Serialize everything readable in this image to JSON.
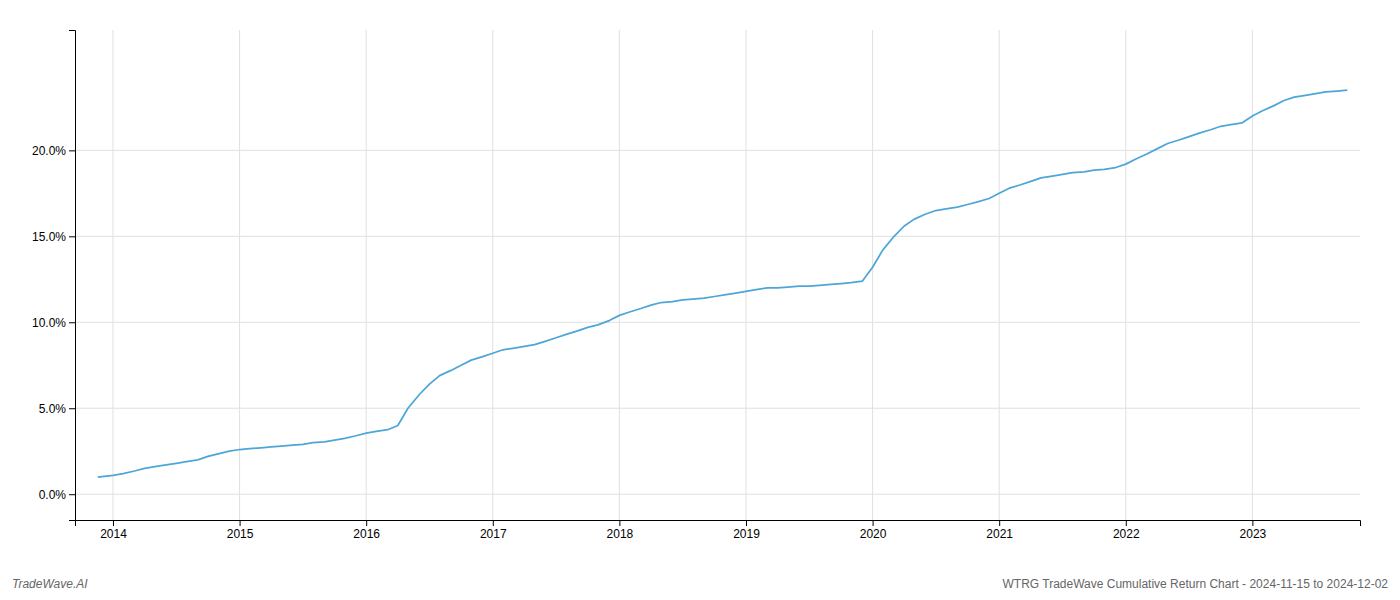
{
  "chart_data": {
    "type": "line",
    "title": "WTRG TradeWave Cumulative Return Chart - 2024-11-15 to 2024-12-02",
    "annotations": [
      "TradeWave.AI"
    ],
    "color": "#4da6d8",
    "grid": true,
    "x": [
      2013.88,
      2014.0,
      2014.08,
      2014.17,
      2014.25,
      2014.33,
      2014.42,
      2014.5,
      2014.58,
      2014.67,
      2014.75,
      2014.83,
      2014.92,
      2015.0,
      2015.08,
      2015.17,
      2015.25,
      2015.33,
      2015.42,
      2015.5,
      2015.58,
      2015.67,
      2015.75,
      2015.83,
      2015.92,
      2016.0,
      2016.08,
      2016.17,
      2016.25,
      2016.33,
      2016.42,
      2016.5,
      2016.58,
      2016.67,
      2016.75,
      2016.83,
      2016.92,
      2017.0,
      2017.08,
      2017.17,
      2017.25,
      2017.33,
      2017.42,
      2017.5,
      2017.58,
      2017.67,
      2017.75,
      2017.83,
      2017.92,
      2018.0,
      2018.08,
      2018.17,
      2018.25,
      2018.33,
      2018.42,
      2018.5,
      2018.58,
      2018.67,
      2018.75,
      2018.83,
      2018.92,
      2019.0,
      2019.08,
      2019.17,
      2019.25,
      2019.33,
      2019.42,
      2019.5,
      2019.58,
      2019.67,
      2019.75,
      2019.83,
      2019.92,
      2020.0,
      2020.08,
      2020.17,
      2020.25,
      2020.33,
      2020.42,
      2020.5,
      2020.58,
      2020.67,
      2020.75,
      2020.83,
      2020.92,
      2021.0,
      2021.08,
      2021.17,
      2021.25,
      2021.33,
      2021.42,
      2021.5,
      2021.58,
      2021.67,
      2021.75,
      2021.83,
      2021.92,
      2022.0,
      2022.08,
      2022.17,
      2022.25,
      2022.33,
      2022.42,
      2022.5,
      2022.58,
      2022.67,
      2022.75,
      2022.83,
      2022.92,
      2023.0,
      2023.08,
      2023.17,
      2023.25,
      2023.33,
      2023.42,
      2023.5,
      2023.58,
      2023.67,
      2023.75
    ],
    "values": [
      1.0,
      1.1,
      1.2,
      1.35,
      1.5,
      1.6,
      1.7,
      1.8,
      1.9,
      2.0,
      2.2,
      2.35,
      2.5,
      2.6,
      2.65,
      2.7,
      2.75,
      2.8,
      2.85,
      2.9,
      3.0,
      3.05,
      3.15,
      3.25,
      3.4,
      3.55,
      3.65,
      3.75,
      4.0,
      5.0,
      5.8,
      6.4,
      6.9,
      7.2,
      7.5,
      7.8,
      8.0,
      8.2,
      8.4,
      8.5,
      8.6,
      8.7,
      8.9,
      9.1,
      9.3,
      9.5,
      9.7,
      9.85,
      10.1,
      10.4,
      10.6,
      10.8,
      11.0,
      11.15,
      11.2,
      11.3,
      11.35,
      11.4,
      11.5,
      11.6,
      11.7,
      11.8,
      11.9,
      12.0,
      12.0,
      12.05,
      12.1,
      12.1,
      12.15,
      12.2,
      12.25,
      12.3,
      12.4,
      13.2,
      14.2,
      15.0,
      15.6,
      16.0,
      16.3,
      16.5,
      16.6,
      16.7,
      16.85,
      17.0,
      17.2,
      17.5,
      17.8,
      18.0,
      18.2,
      18.4,
      18.5,
      18.6,
      18.7,
      18.75,
      18.85,
      18.9,
      19.0,
      19.2,
      19.5,
      19.8,
      20.1,
      20.4,
      20.6,
      20.8,
      21.0,
      21.2,
      21.4,
      21.5,
      21.6,
      22.0,
      22.3,
      22.6,
      22.9,
      23.1,
      23.2,
      23.3,
      23.4,
      23.45,
      23.5
    ],
    "xlim": [
      2013.7,
      2023.85
    ],
    "xticks": [
      2014,
      2015,
      2016,
      2017,
      2018,
      2019,
      2020,
      2021,
      2022,
      2023
    ],
    "ylim": [
      -1.5,
      27.0
    ],
    "yticks": [
      {
        "value": 0.0,
        "label": "0.0%"
      },
      {
        "value": 5.0,
        "label": "5.0%"
      },
      {
        "value": 10.0,
        "label": "10.0%"
      },
      {
        "value": 15.0,
        "label": "15.0%"
      },
      {
        "value": 20.0,
        "label": "20.0%"
      }
    ]
  }
}
